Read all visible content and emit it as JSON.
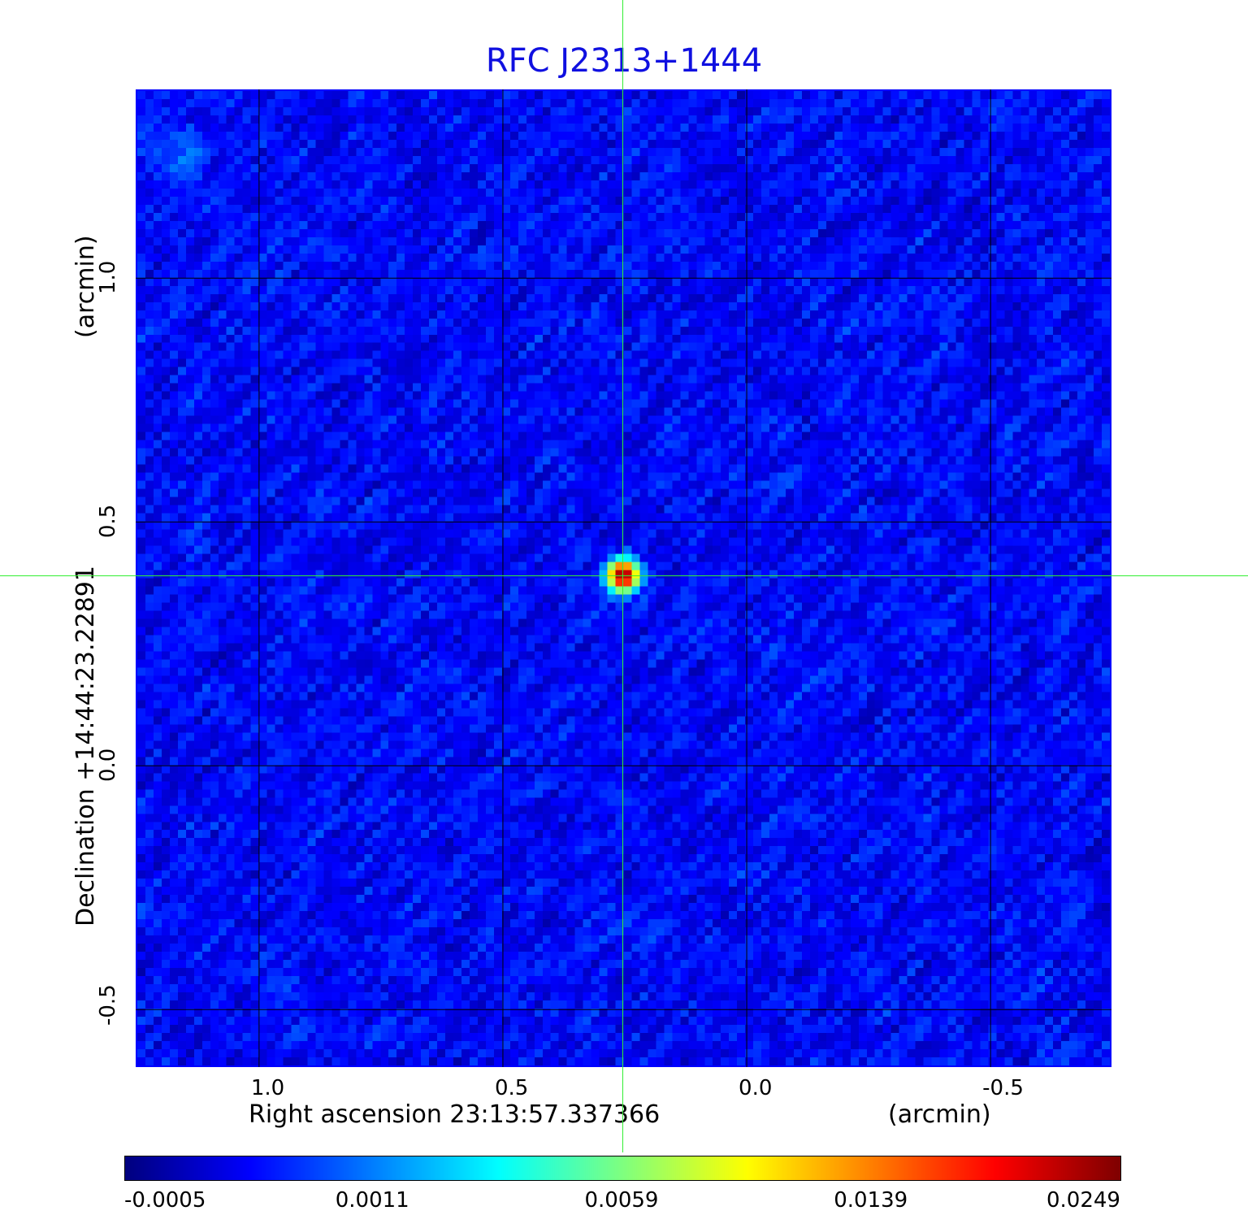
{
  "chart_data": {
    "type": "heatmap",
    "title": "RFC J2313+1444",
    "xlabel": "Right ascension  23:13:57.337366",
    "xunit": "(arcmin)",
    "ylabel": "Declination  +14:44:23.22891",
    "yunit": "(arcmin)",
    "xlim": [
      1.253,
      -0.748
    ],
    "ylim": [
      -0.618,
      1.387
    ],
    "xticks": [
      "1.0",
      "0.5",
      "0.0",
      "-0.5"
    ],
    "xtick_values": [
      1.0,
      0.5,
      0.0,
      -0.5
    ],
    "yticks": [
      "1.0",
      "0.5",
      "0.0",
      "-0.5"
    ],
    "ytick_values": [
      1.0,
      0.5,
      0.0,
      -0.5
    ],
    "grid": true,
    "grid_color": "#000000",
    "colormap": "jet",
    "colorbar": {
      "ticks": [
        "-0.0005",
        "0.0011",
        "0.0059",
        "0.0139",
        "0.0249"
      ],
      "tick_values": [
        -0.0005,
        0.0011,
        0.0059,
        0.0139,
        0.0249
      ],
      "placement": "bottom"
    },
    "source": {
      "x": 0.253,
      "y": 0.39,
      "peak": 0.0249
    },
    "background_level": 0.0003,
    "crosshair": {
      "x": 0.253,
      "y": 0.39,
      "color": "#33ee33"
    },
    "title_color": "#1010e0",
    "frame_color": "#0000ff"
  }
}
